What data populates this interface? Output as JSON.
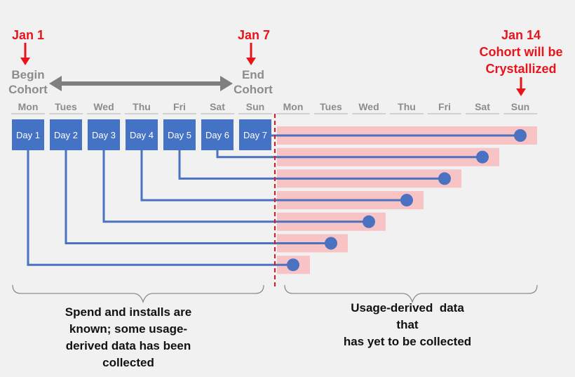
{
  "markers": {
    "start": {
      "date": "Jan 1",
      "lines": [
        "Begin",
        "Cohort"
      ]
    },
    "end": {
      "date": "Jan 7",
      "lines": [
        "End",
        "Cohort"
      ]
    },
    "crystallize": {
      "lines": [
        "Jan 14",
        "Cohort will be",
        "Crystallized"
      ]
    }
  },
  "weekdays": [
    "Mon",
    "Tues",
    "Wed",
    "Thu",
    "Fri",
    "Sat",
    "Sun",
    "Mon",
    "Tues",
    "Wed",
    "Thu",
    "Fri",
    "Sat",
    "Sun"
  ],
  "cohort_days": [
    "Day 1",
    "Day 2",
    "Day 3",
    "Day 4",
    "Day 5",
    "Day 6",
    "Day 7"
  ],
  "captions": {
    "left": [
      "Spend and installs are",
      "known; some usage-",
      "derived data has been",
      "collected"
    ],
    "right": [
      "Usage-derived  data",
      "that",
      "has yet to be collected"
    ]
  },
  "colors": {
    "accent_red": "#e8141c",
    "box_blue": "#4472c4",
    "line_blue": "#4a72c0",
    "pending_pink": "#f7c3c5",
    "grey": "#8c8c8c"
  }
}
